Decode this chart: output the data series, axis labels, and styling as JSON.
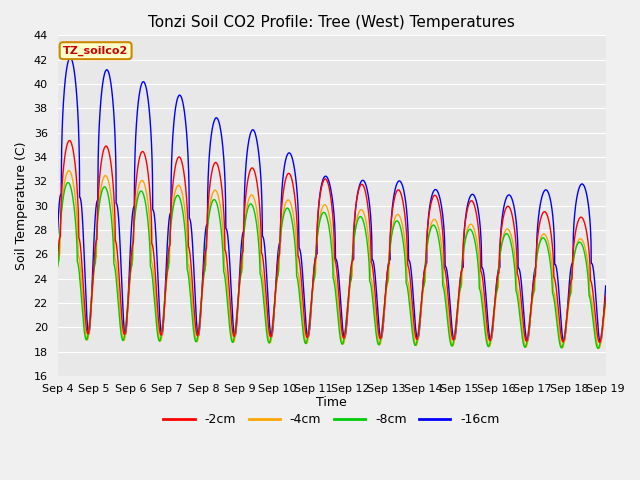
{
  "title": "Tonzi Soil CO2 Profile: Tree (West) Temperatures",
  "ylabel": "Soil Temperature (C)",
  "xlabel": "Time",
  "legend_label": "TZ_soilco2",
  "ylim": [
    16,
    44
  ],
  "yticks": [
    16,
    18,
    20,
    22,
    24,
    26,
    28,
    30,
    32,
    34,
    36,
    38,
    40,
    42,
    44
  ],
  "line_colors": {
    "m2cm": "#ff0000",
    "m4cm": "#ffa500",
    "m8cm": "#00cc00",
    "m16cm": "#0000ff"
  },
  "line_labels": [
    "-2cm",
    "-4cm",
    "-8cm",
    "-16cm"
  ],
  "fig_bg_color": "#f0f0f0",
  "plot_bg_color": "#e8e8e8",
  "title_fontsize": 11,
  "axis_fontsize": 9,
  "tick_fontsize": 8,
  "n_days": 15,
  "pts_per_day": 240,
  "x_tick_labels": [
    "Sep 4",
    "Sep 5",
    "Sep 6",
    "Sep 7",
    "Sep 8",
    "Sep 9",
    "Sep 10",
    "Sep 11",
    "Sep 12",
    "Sep 13",
    "Sep 14",
    "Sep 15",
    "Sep 16",
    "Sep 17",
    "Sep 18",
    "Sep 19"
  ]
}
